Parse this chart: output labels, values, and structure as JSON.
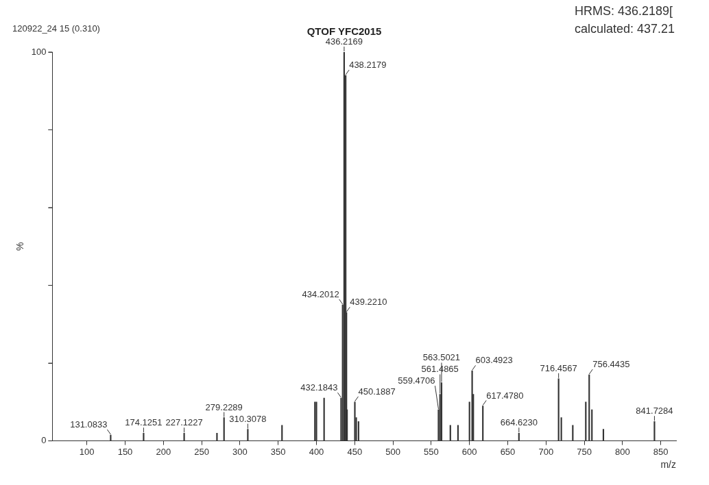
{
  "chart_data": {
    "type": "bar",
    "title": "QTOF YFC2015",
    "xlabel": "m/z",
    "ylabel": "%",
    "x": [
      131.0833,
      174.1251,
      227.1227,
      270,
      279.2289,
      310.3078,
      355,
      398,
      400,
      410,
      432.1843,
      434.2012,
      436.2169,
      438.2179,
      439.221,
      440,
      450.1887,
      452,
      455,
      559.4706,
      561.4865,
      563.5021,
      575,
      585,
      600,
      603.4923,
      605,
      617.478,
      664.623,
      716.4567,
      720,
      735,
      752,
      756.4435,
      760,
      775,
      841.7284
    ],
    "values": [
      1.5,
      2,
      2,
      2,
      6,
      3,
      4,
      10,
      10,
      11,
      11,
      35,
      100,
      94,
      33,
      8,
      10,
      6,
      5,
      8,
      12,
      15,
      4,
      4,
      10,
      18,
      12,
      9,
      2,
      16,
      6,
      4,
      10,
      17,
      8,
      3,
      5
    ],
    "color": "#333333",
    "xlim": [
      55,
      870
    ],
    "xticks": [
      100,
      150,
      200,
      250,
      300,
      350,
      400,
      450,
      500,
      550,
      600,
      650,
      700,
      750,
      800,
      850
    ],
    "ylim": [
      0,
      100
    ],
    "yticks": [
      0,
      {
        "value": 20,
        "label": null
      },
      {
        "value": 40,
        "label": null
      },
      {
        "value": 60,
        "label": null
      },
      {
        "value": 80,
        "label": null
      },
      100
    ],
    "grid": false,
    "legend": false,
    "annotations": [
      "120922_24 15 (0.310)",
      "HRMS: 436.2189[",
      "calculated: 437.21",
      {
        "text": "436.2169",
        "x": 436.2169,
        "y": 100
      },
      {
        "text": "438.2179",
        "x": 438.2179,
        "y": 94
      },
      {
        "text": "434.2012",
        "x": 434.2012,
        "y": 35
      },
      {
        "text": "439.2210",
        "x": 439.221,
        "y": 33
      },
      {
        "text": "432.1843",
        "x": 432.1843,
        "y": 11
      },
      {
        "text": "450.1887",
        "x": 450.1887,
        "y": 10
      },
      {
        "text": "279.2289",
        "x": 279.2289,
        "y": 6
      },
      {
        "text": "310.3078",
        "x": 310.3078,
        "y": 3
      },
      {
        "text": "227.1227",
        "x": 227.1227,
        "y": 2
      },
      {
        "text": "174.1251",
        "x": 174.1251,
        "y": 2
      },
      {
        "text": "131.0833",
        "x": 131.0833,
        "y": 1.5
      },
      {
        "text": "559.4706",
        "x": 559.4706,
        "y": 8
      },
      {
        "text": "561.4865",
        "x": 561.4865,
        "y": 12
      },
      {
        "text": "563.5021",
        "x": 563.5021,
        "y": 15
      },
      {
        "text": "603.4923",
        "x": 603.4923,
        "y": 18
      },
      {
        "text": "617.4780",
        "x": 617.478,
        "y": 9
      },
      {
        "text": "664.6230",
        "x": 664.623,
        "y": 2
      },
      {
        "text": "716.4567",
        "x": 716.4567,
        "y": 16
      },
      {
        "text": "756.4435",
        "x": 756.4435,
        "y": 17
      },
      {
        "text": "841.7284",
        "x": 841.7284,
        "y": 5
      }
    ]
  }
}
